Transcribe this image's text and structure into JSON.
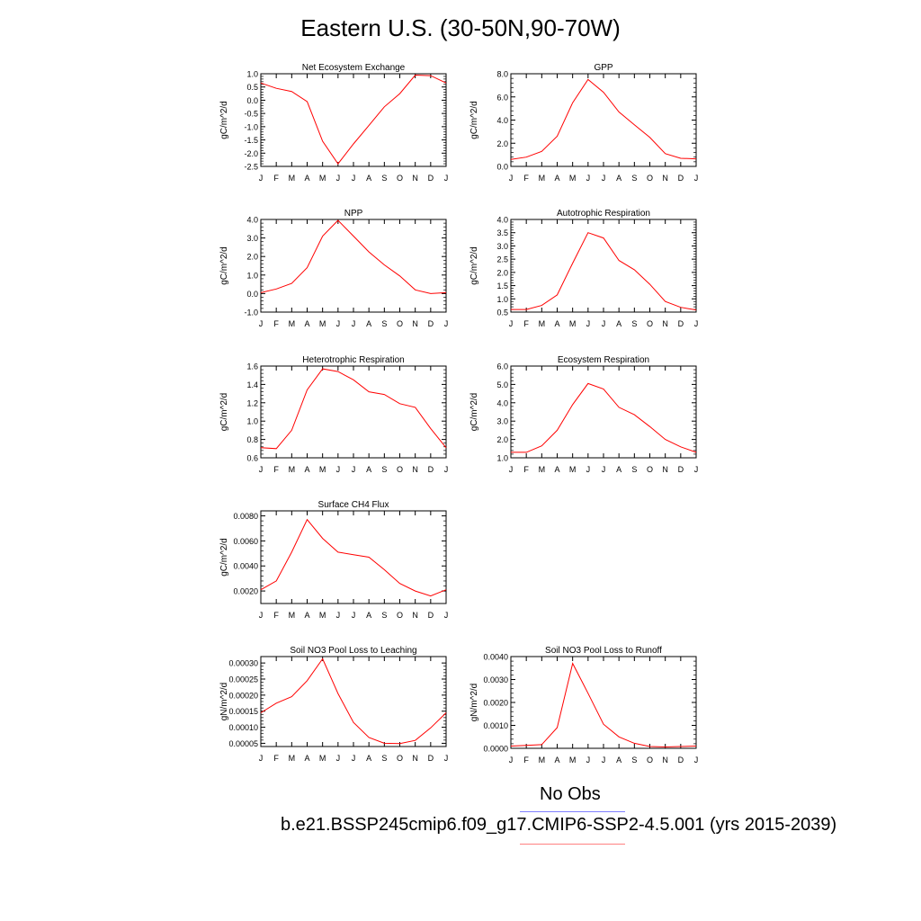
{
  "title": "Eastern U.S. (30-50N,90-70W)",
  "months": [
    "J",
    "F",
    "M",
    "A",
    "M",
    "J",
    "J",
    "A",
    "S",
    "O",
    "N",
    "D",
    "J"
  ],
  "colors": {
    "model": "#ff0000",
    "obs_legend": "#8080ff",
    "model_legend": "#ff8080"
  },
  "legend": {
    "obs_label": "No Obs",
    "case_label": "b.e21.BSSP245cmip6.f09_g17.CMIP6-SSP2-4.5.001 (yrs 2015-2039)"
  },
  "chart_data": [
    {
      "type": "line",
      "title": "Net Ecosystem Exchange",
      "ylabel": "gC/m^2/d",
      "ylim": [
        -2.5,
        1.0
      ],
      "yticks": [
        1.0,
        0.5,
        0.0,
        -0.5,
        -1.0,
        -1.5,
        -2.0,
        -2.5
      ],
      "ytick_labels": [
        "1.0",
        "0.5",
        "0.0",
        "-0.5",
        "-1.0",
        "-1.5",
        "-2.0",
        "-2.5"
      ],
      "values": [
        0.65,
        0.45,
        0.33,
        -0.05,
        -1.55,
        -2.4,
        -1.65,
        -0.95,
        -0.25,
        0.25,
        0.95,
        0.93,
        0.65
      ]
    },
    {
      "type": "line",
      "title": "GPP",
      "ylabel": "gC/m^2/d",
      "ylim": [
        0.0,
        8.0
      ],
      "yticks": [
        8.0,
        6.0,
        4.0,
        2.0,
        0.0
      ],
      "ytick_labels": [
        "8.0",
        "6.0",
        "4.0",
        "2.0",
        "0.0"
      ],
      "values": [
        0.6,
        0.8,
        1.3,
        2.6,
        5.5,
        7.5,
        6.4,
        4.7,
        3.6,
        2.5,
        1.1,
        0.7,
        0.65
      ]
    },
    {
      "type": "line",
      "title": "NPP",
      "ylabel": "gC/m^2/d",
      "ylim": [
        -1.0,
        4.0
      ],
      "yticks": [
        4.0,
        3.0,
        2.0,
        1.0,
        0.0,
        -1.0
      ],
      "ytick_labels": [
        "4.0",
        "3.0",
        "2.0",
        "1.0",
        "0.0",
        "-1.0"
      ],
      "values": [
        0.05,
        0.25,
        0.55,
        1.4,
        3.1,
        3.95,
        3.1,
        2.25,
        1.55,
        0.95,
        0.2,
        0.0,
        0.05
      ]
    },
    {
      "type": "line",
      "title": "Autotrophic Respiration",
      "ylabel": "gC/m^2/d",
      "ylim": [
        0.5,
        4.0
      ],
      "yticks": [
        4.0,
        3.5,
        3.0,
        2.5,
        2.0,
        1.5,
        1.0,
        0.5
      ],
      "ytick_labels": [
        "4.0",
        "3.5",
        "3.0",
        "2.5",
        "2.0",
        "1.5",
        "1.0",
        "0.5"
      ],
      "values": [
        0.6,
        0.6,
        0.75,
        1.15,
        2.35,
        3.5,
        3.3,
        2.45,
        2.1,
        1.55,
        0.9,
        0.68,
        0.58
      ]
    },
    {
      "type": "line",
      "title": "Heterotrophic Respiration",
      "ylabel": "gC/m^2/d",
      "ylim": [
        0.6,
        1.6
      ],
      "yticks": [
        1.6,
        1.4,
        1.2,
        1.0,
        0.8,
        0.6
      ],
      "ytick_labels": [
        "1.6",
        "1.4",
        "1.2",
        "1.0",
        "0.8",
        "0.6"
      ],
      "values": [
        0.71,
        0.7,
        0.9,
        1.34,
        1.57,
        1.54,
        1.45,
        1.32,
        1.29,
        1.19,
        1.15,
        0.92,
        0.71
      ]
    },
    {
      "type": "line",
      "title": "Ecosystem Respiration",
      "ylabel": "gC/m^2/d",
      "ylim": [
        1.0,
        6.0
      ],
      "yticks": [
        6.0,
        5.0,
        4.0,
        3.0,
        2.0,
        1.0
      ],
      "ytick_labels": [
        "6.0",
        "5.0",
        "4.0",
        "3.0",
        "2.0",
        "1.0"
      ],
      "values": [
        1.3,
        1.3,
        1.65,
        2.5,
        3.9,
        5.05,
        4.75,
        3.75,
        3.35,
        2.7,
        2.0,
        1.6,
        1.3
      ]
    },
    {
      "type": "line",
      "title": "Surface CH4 Flux",
      "ylabel": "gC/m^2/d",
      "ylim": [
        0.001,
        0.0084
      ],
      "yticks": [
        0.008,
        0.006,
        0.004,
        0.002
      ],
      "ytick_labels": [
        "0.0080",
        "0.0060",
        "0.0040",
        "0.0020"
      ],
      "values": [
        0.0021,
        0.0028,
        0.0051,
        0.0077,
        0.0062,
        0.0051,
        0.0049,
        0.0047,
        0.0037,
        0.0026,
        0.002,
        0.0016,
        0.0021
      ]
    },
    {
      "type": "line",
      "title": "Soil NO3 Pool Loss to Leaching",
      "ylabel": "gN/m^2/d",
      "ylim": [
        4e-05,
        0.00032
      ],
      "yticks": [
        0.0003,
        0.00025,
        0.0002,
        0.00015,
        0.0001,
        5e-05
      ],
      "ytick_labels": [
        "0.00030",
        "0.00025",
        "0.00020",
        "0.00015",
        "0.00010",
        "0.00005"
      ],
      "values": [
        0.000145,
        0.000175,
        0.000195,
        0.000245,
        0.000313,
        0.000205,
        0.000115,
        6.8e-05,
        5e-05,
        4.9e-05,
        5.9e-05,
        9.8e-05,
        0.000145
      ]
    },
    {
      "type": "line",
      "title": "Soil NO3 Pool Loss to Runoff",
      "ylabel": "gN/m^2/d",
      "ylim": [
        0.0,
        0.004
      ],
      "yticks": [
        0.004,
        0.003,
        0.002,
        0.001,
        0.0
      ],
      "ytick_labels": [
        "0.0040",
        "0.0030",
        "0.0020",
        "0.0010",
        "0.0000"
      ],
      "values": [
        0.0001,
        0.00013,
        0.00016,
        0.0009,
        0.0037,
        0.0024,
        0.00105,
        0.0005,
        0.00022,
        8e-05,
        6e-05,
        8e-05,
        0.0001
      ]
    }
  ]
}
